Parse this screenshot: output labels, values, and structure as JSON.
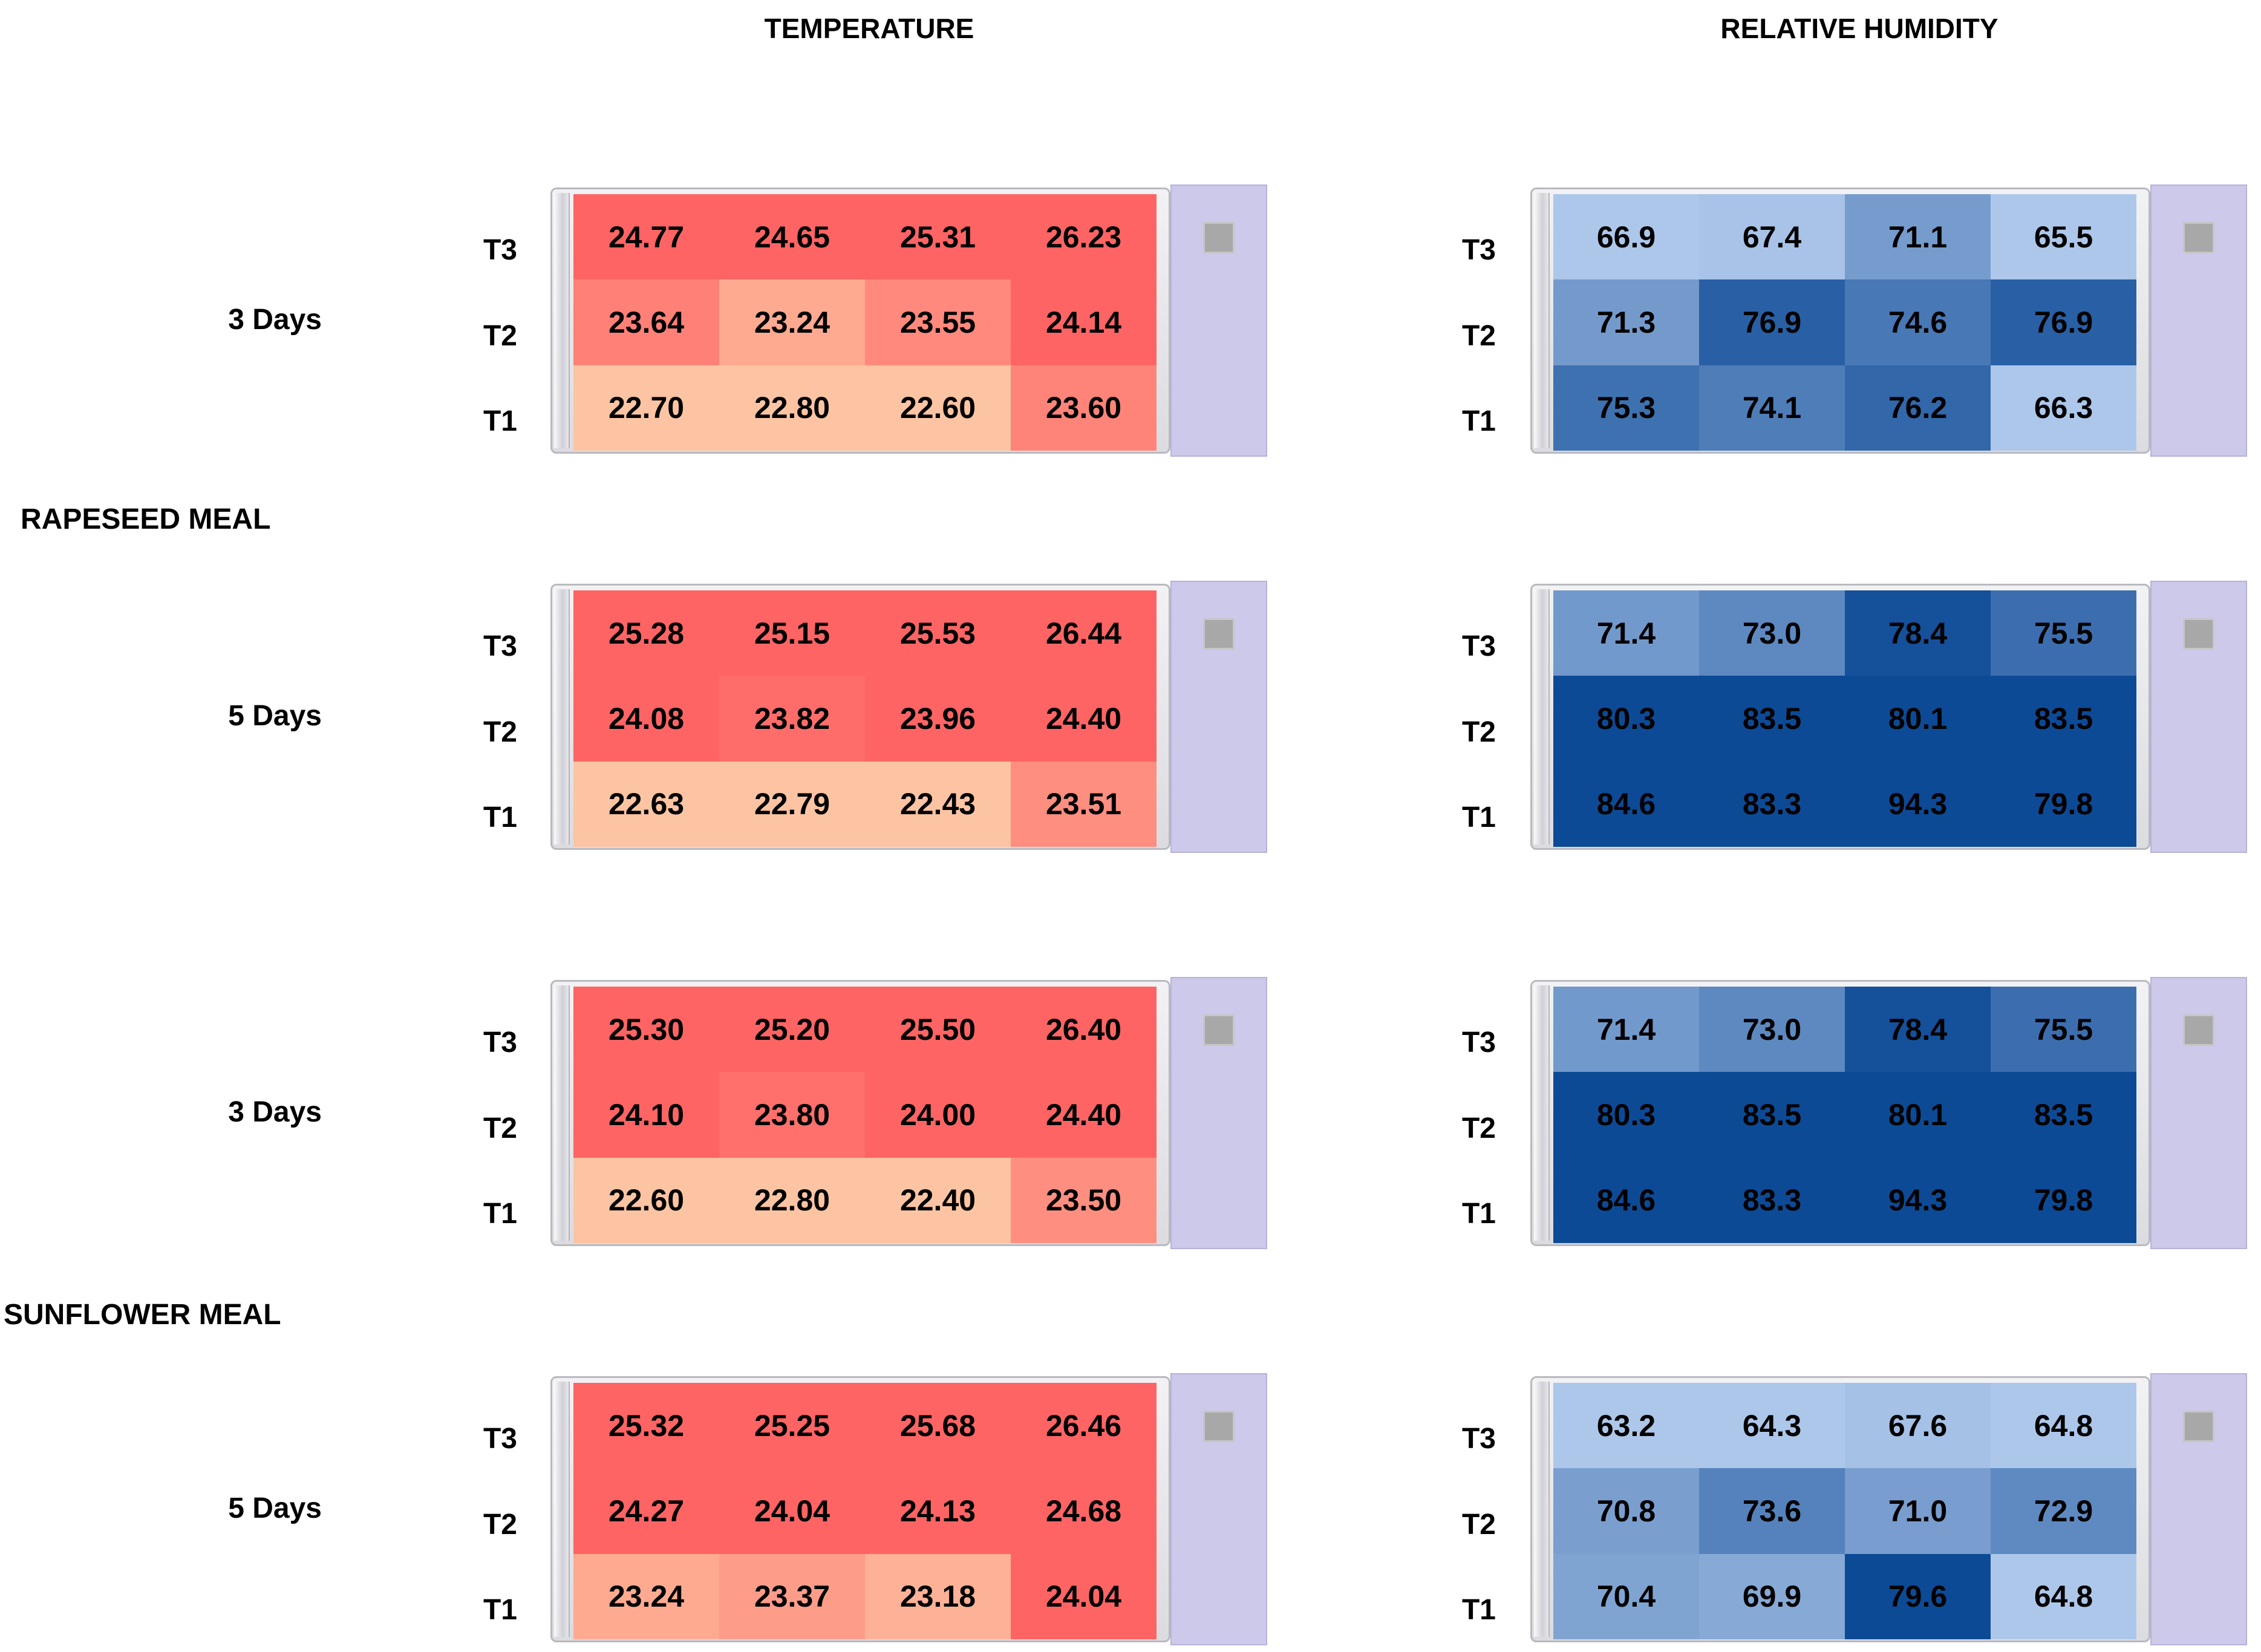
{
  "headers": {
    "temperature": "TEMPERATURE",
    "humidity": "RELATIVE HUMIDITY"
  },
  "chart_data": {
    "type": "heatmap",
    "row_labels": [
      "T3",
      "T2",
      "T1"
    ],
    "colors": {
      "temperature_low": "#fcc4a2",
      "temperature_high": "#ff6464",
      "humidity_low": "#adc7ea",
      "humidity_high": "#0d4a96"
    },
    "groups": [
      {
        "name": "RAPESEED MEAL",
        "panels": [
          {
            "label": "3 Days",
            "temperature": [
              [
                "24.77",
                "24.65",
                "25.31",
                "26.23"
              ],
              [
                "23.64",
                "23.24",
                "23.55",
                "24.14"
              ],
              [
                "22.70",
                "22.80",
                "22.60",
                "23.60"
              ]
            ],
            "humidity": [
              [
                "66.9",
                "67.4",
                "71.1",
                "65.5"
              ],
              [
                "71.3",
                "76.9",
                "74.6",
                "76.9"
              ],
              [
                "75.3",
                "74.1",
                "76.2",
                "66.3"
              ]
            ]
          },
          {
            "label": "5 Days",
            "temperature": [
              [
                "25.28",
                "25.15",
                "25.53",
                "26.44"
              ],
              [
                "24.08",
                "23.82",
                "23.96",
                "24.40"
              ],
              [
                "22.63",
                "22.79",
                "22.43",
                "23.51"
              ]
            ],
            "humidity": [
              [
                "71.4",
                "73.0",
                "78.4",
                "75.5"
              ],
              [
                "80.3",
                "83.5",
                "80.1",
                "83.5"
              ],
              [
                "84.6",
                "83.3",
                "94.3",
                "79.8"
              ]
            ]
          }
        ]
      },
      {
        "name": "SUNFLOWER MEAL",
        "panels": [
          {
            "label": "3 Days",
            "temperature": [
              [
                "25.30",
                "25.20",
                "25.50",
                "26.40"
              ],
              [
                "24.10",
                "23.80",
                "24.00",
                "24.40"
              ],
              [
                "22.60",
                "22.80",
                "22.40",
                "23.50"
              ]
            ],
            "humidity": [
              [
                "71.4",
                "73.0",
                "78.4",
                "75.5"
              ],
              [
                "80.3",
                "83.5",
                "80.1",
                "83.5"
              ],
              [
                "84.6",
                "83.3",
                "94.3",
                "79.8"
              ]
            ]
          },
          {
            "label": "5 Days",
            "temperature": [
              [
                "25.32",
                "25.25",
                "25.68",
                "26.46"
              ],
              [
                "24.27",
                "24.04",
                "24.13",
                "24.68"
              ],
              [
                "23.24",
                "23.37",
                "23.18",
                "24.04"
              ]
            ],
            "humidity": [
              [
                "63.2",
                "64.3",
                "67.6",
                "64.8"
              ],
              [
                "70.8",
                "73.6",
                "71.0",
                "72.9"
              ],
              [
                "70.4",
                "69.9",
                "79.6",
                "64.8"
              ]
            ]
          }
        ]
      }
    ]
  }
}
